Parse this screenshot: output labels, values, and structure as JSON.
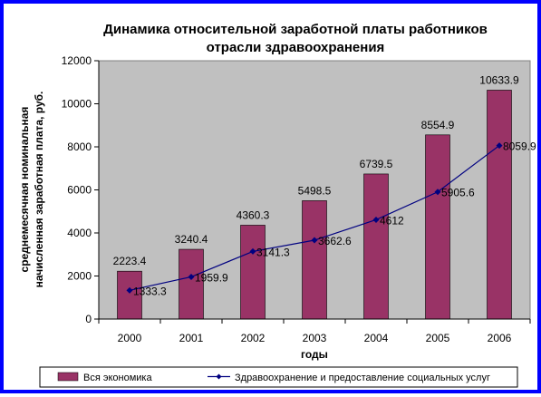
{
  "chart_data": {
    "type": "bar",
    "title_lines": [
      "Динамика относительной заработной платы работников",
      "отрасли здравоохранения"
    ],
    "xlabel": "годы",
    "ylabel_lines": [
      "среднемесячная номинальная",
      "начисленная заработная плата, руб."
    ],
    "categories": [
      "2000",
      "2001",
      "2002",
      "2003",
      "2004",
      "2005",
      "2006"
    ],
    "ylim": [
      0,
      12000
    ],
    "yticks": [
      0,
      2000,
      4000,
      6000,
      8000,
      10000,
      12000
    ],
    "grid": false,
    "legend_position": "bottom",
    "series": [
      {
        "name": "Вся экономика",
        "type": "bar",
        "color": "#993366",
        "values": [
          2223.4,
          3240.4,
          4360.3,
          5498.5,
          6739.5,
          8554.9,
          10633.9
        ],
        "labels": [
          "2223.4",
          "3240.4",
          "4360.3",
          "5498.5",
          "6739.5",
          "8554.9",
          "10633.9"
        ]
      },
      {
        "name": "Здравоохранение и предоставление социальных услуг",
        "type": "line",
        "color": "#000080",
        "values": [
          1333.3,
          1959.9,
          3141.3,
          3662.6,
          4612,
          5905.6,
          8059.9
        ],
        "labels": [
          "1333.3",
          "1959.9",
          "3141.3",
          "3662.6",
          "4612",
          "5905.6",
          "8059.9"
        ]
      }
    ],
    "plot_background": "#c0c0c0",
    "frame_color": "#0000ff"
  }
}
